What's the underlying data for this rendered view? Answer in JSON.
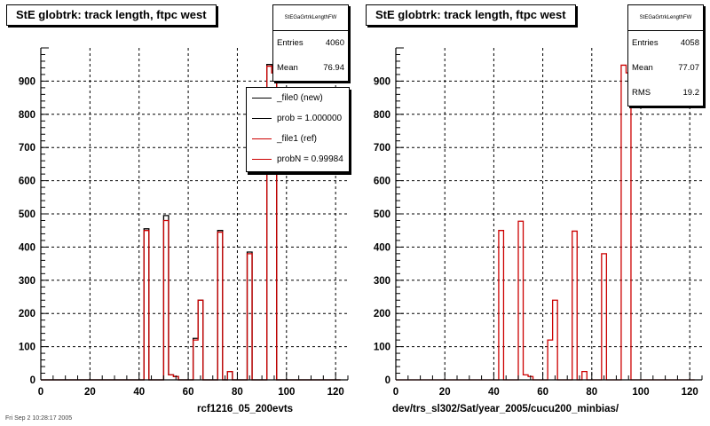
{
  "footer_text": "Fri Sep  2 10:28:17 2005",
  "chart_data": [
    {
      "type": "histogram",
      "title": "StE globtrk: track length, ftpc west",
      "xlabel": "rcf1216_05_200evts",
      "ylabel": "",
      "xlim": [
        0,
        125
      ],
      "ylim": [
        0,
        1000
      ],
      "x_ticks": [
        0,
        20,
        40,
        60,
        80,
        100,
        120
      ],
      "y_ticks": [
        0,
        100,
        200,
        300,
        400,
        500,
        600,
        700,
        800,
        900
      ],
      "grid": true,
      "bin_edges": [
        0,
        2,
        4,
        6,
        8,
        10,
        12,
        14,
        16,
        18,
        20,
        22,
        24,
        26,
        28,
        30,
        32,
        34,
        36,
        38,
        40,
        42,
        44,
        46,
        48,
        50,
        52,
        54,
        56,
        58,
        60,
        62,
        64,
        66,
        68,
        70,
        72,
        74,
        76,
        78,
        80,
        82,
        84,
        86,
        88,
        90,
        92,
        94,
        96,
        98,
        100,
        102,
        104,
        106,
        108,
        110,
        112,
        114,
        116,
        118,
        120,
        122
      ],
      "series": [
        {
          "name": "_file0 (new)",
          "color": "#000000",
          "values": [
            0,
            0,
            0,
            0,
            0,
            0,
            0,
            0,
            0,
            0,
            0,
            0,
            0,
            0,
            0,
            0,
            0,
            0,
            0,
            0,
            0,
            455,
            0,
            0,
            0,
            495,
            15,
            10,
            0,
            0,
            0,
            125,
            240,
            0,
            0,
            0,
            450,
            0,
            25,
            0,
            0,
            0,
            385,
            0,
            0,
            0,
            950,
            925,
            0,
            0,
            0,
            0,
            0,
            0,
            0,
            0,
            0,
            0,
            0,
            0,
            0
          ]
        },
        {
          "name": "_file1 (ref)",
          "color": "#cc0000",
          "values": [
            0,
            0,
            0,
            0,
            0,
            0,
            0,
            0,
            0,
            0,
            0,
            0,
            0,
            0,
            0,
            0,
            0,
            0,
            0,
            0,
            0,
            450,
            0,
            0,
            0,
            480,
            15,
            10,
            0,
            0,
            0,
            120,
            240,
            0,
            0,
            0,
            445,
            0,
            25,
            0,
            0,
            0,
            380,
            0,
            0,
            0,
            945,
            925,
            0,
            0,
            0,
            0,
            0,
            0,
            0,
            0,
            0,
            0,
            0,
            0,
            0
          ]
        }
      ],
      "stats": {
        "name": "StEGaGrtrkLengthFW",
        "entries": "4060",
        "mean": "76.94",
        "rms": ""
      },
      "legend": [
        {
          "label": "_file0 (new)",
          "color": "#000000"
        },
        {
          "label": "prob = 1.000000",
          "color": "#000000"
        },
        {
          "label": "_file1 (ref)",
          "color": "#cc0000"
        },
        {
          "label": "probN = 0.99984",
          "color": "#cc0000"
        }
      ]
    },
    {
      "type": "histogram",
      "title": "StE globtrk: track length, ftpc west",
      "xlabel": "dev/trs_sl302/Sat/year_2005/cucu200_minbias/",
      "ylabel": "",
      "xlim": [
        0,
        125
      ],
      "ylim": [
        0,
        1000
      ],
      "x_ticks": [
        0,
        20,
        40,
        60,
        80,
        100,
        120
      ],
      "y_ticks": [
        0,
        100,
        200,
        300,
        400,
        500,
        600,
        700,
        800,
        900
      ],
      "grid": true,
      "bin_edges": [
        0,
        2,
        4,
        6,
        8,
        10,
        12,
        14,
        16,
        18,
        20,
        22,
        24,
        26,
        28,
        30,
        32,
        34,
        36,
        38,
        40,
        42,
        44,
        46,
        48,
        50,
        52,
        54,
        56,
        58,
        60,
        62,
        64,
        66,
        68,
        70,
        72,
        74,
        76,
        78,
        80,
        82,
        84,
        86,
        88,
        90,
        92,
        94,
        96,
        98,
        100,
        102,
        104,
        106,
        108,
        110,
        112,
        114,
        116,
        118,
        120,
        122
      ],
      "series": [
        {
          "name": "",
          "color": "#cc0000",
          "values": [
            0,
            0,
            0,
            0,
            0,
            0,
            0,
            0,
            0,
            0,
            0,
            0,
            0,
            0,
            0,
            0,
            0,
            0,
            0,
            0,
            0,
            450,
            0,
            0,
            0,
            478,
            15,
            10,
            0,
            0,
            0,
            120,
            240,
            0,
            0,
            0,
            448,
            0,
            25,
            0,
            0,
            0,
            380,
            0,
            0,
            0,
            948,
            925,
            0,
            0,
            0,
            0,
            0,
            0,
            0,
            0,
            0,
            0,
            0,
            0,
            0
          ]
        }
      ],
      "stats": {
        "name": "StEGaGrtrkLengthFW",
        "entries": "4058",
        "mean": "77.07",
        "rms": "19.2"
      },
      "legend": []
    }
  ],
  "labels": {
    "entries": "Entries",
    "mean": "Mean",
    "rms": "RMS"
  }
}
